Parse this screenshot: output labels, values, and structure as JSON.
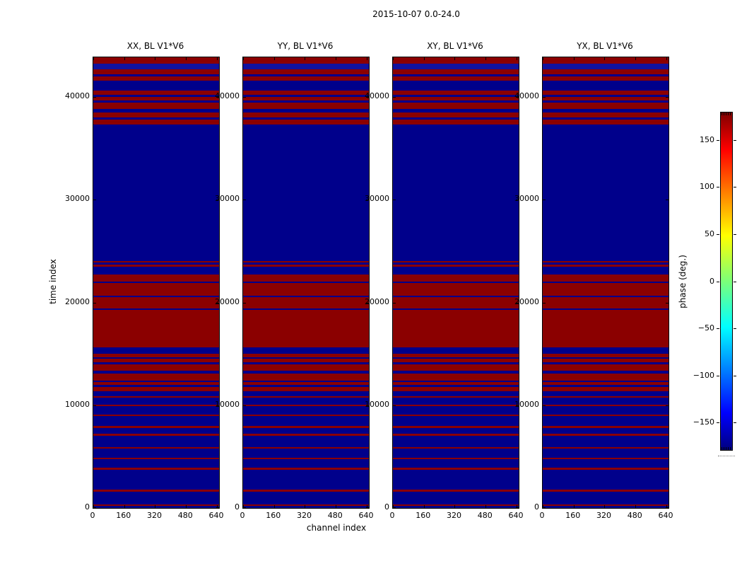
{
  "figure": {
    "title": "2015-10-07 0.0-24.0"
  },
  "chart_data": {
    "type": "heatmap",
    "title": "2015-10-07 0.0-24.0",
    "panels": [
      {
        "title": "XX, BL V1*V6"
      },
      {
        "title": "YY, BL V1*V6"
      },
      {
        "title": "XY, BL V1*V6"
      },
      {
        "title": "YX, BL V1*V6"
      }
    ],
    "xlabel": "channel index",
    "ylabel": "time index",
    "x_ticks": [
      0,
      160,
      320,
      480,
      640
    ],
    "y_ticks": [
      0,
      10000,
      20000,
      30000,
      40000
    ],
    "xlim": [
      0,
      651
    ],
    "ylim": [
      0,
      43860
    ],
    "base_color_value": "blue (phase near -180 deg)",
    "band_color_value": "red (phase near +180 deg)",
    "colors": {
      "red": "#8b0000",
      "blue": "#00008b",
      "blue_bright": "#12129e"
    },
    "red_bands_time": [
      [
        43230,
        43860
      ],
      [
        42210,
        42690
      ],
      [
        41590,
        42000
      ],
      [
        40210,
        40620
      ],
      [
        39660,
        40000
      ],
      [
        38830,
        39450
      ],
      [
        38000,
        38490
      ],
      [
        37320,
        37800
      ],
      [
        23890,
        24030
      ],
      [
        23480,
        23690
      ],
      [
        22030,
        22720
      ],
      [
        20660,
        21900
      ],
      [
        19420,
        20520
      ],
      [
        15630,
        19280
      ],
      [
        14670,
        15010
      ],
      [
        14180,
        14530
      ],
      [
        13360,
        13980
      ],
      [
        12390,
        13080
      ],
      [
        11980,
        12260
      ],
      [
        11360,
        11770
      ],
      [
        10740,
        10880
      ],
      [
        9910,
        10050
      ],
      [
        8950,
        9090
      ],
      [
        7780,
        7990
      ],
      [
        7020,
        7230
      ],
      [
        5780,
        5920
      ],
      [
        4750,
        4890
      ],
      [
        3720,
        3920
      ],
      [
        1580,
        1790
      ],
      [
        210,
        340
      ]
    ],
    "bright_blue_band_time": [
      42690,
      43230
    ],
    "colorbar": {
      "label": "phase (deg.)",
      "ticks": [
        150,
        100,
        50,
        0,
        -50,
        -100,
        -150
      ],
      "range": [
        -180,
        180
      ],
      "colormap": "jet"
    }
  }
}
